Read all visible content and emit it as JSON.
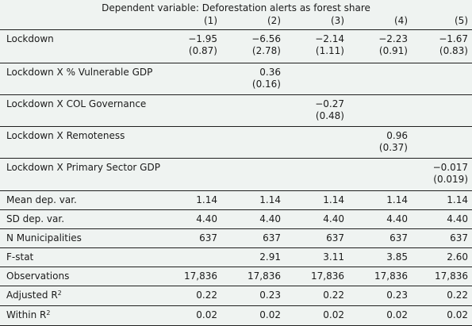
{
  "header": {
    "title": "Dependent variable: Deforestation alerts as forest share",
    "columns": [
      "(1)",
      "(2)",
      "(3)",
      "(4)",
      "(5)"
    ]
  },
  "rows": [
    {
      "label": "Lockdown",
      "est": [
        "−1.95",
        "−6.56",
        "−2.14",
        "−2.23",
        "−1.67"
      ],
      "se": [
        "(0.87)",
        "(2.78)",
        "(1.11)",
        "(0.91)",
        "(0.83)"
      ]
    },
    {
      "label": "Lockdown X % Vulnerable GDP",
      "est": [
        "",
        "0.36",
        "",
        "",
        ""
      ],
      "se": [
        "",
        "(0.16)",
        "",
        "",
        ""
      ]
    },
    {
      "label": "Lockdown X COL Governance",
      "est": [
        "",
        "",
        "−0.27",
        "",
        ""
      ],
      "se": [
        "",
        "",
        "(0.48)",
        "",
        ""
      ]
    },
    {
      "label": "Lockdown X Remoteness",
      "est": [
        "",
        "",
        "",
        "0.96",
        ""
      ],
      "se": [
        "",
        "",
        "",
        "(0.37)",
        ""
      ]
    },
    {
      "label": "Lockdown X Primary Sector GDP",
      "est": [
        "",
        "",
        "",
        "",
        "−0.017"
      ],
      "se": [
        "",
        "",
        "",
        "",
        "(0.019)"
      ]
    }
  ],
  "stats": [
    {
      "label": "Mean dep. var.",
      "values": [
        "1.14",
        "1.14",
        "1.14",
        "1.14",
        "1.14"
      ]
    },
    {
      "label": "SD dep. var.",
      "values": [
        "4.40",
        "4.40",
        "4.40",
        "4.40",
        "4.40"
      ]
    },
    {
      "label": "N Municipalities",
      "values": [
        "637",
        "637",
        "637",
        "637",
        "637"
      ]
    },
    {
      "label": "F-stat",
      "values": [
        "",
        "2.91",
        "3.11",
        "3.85",
        "2.60"
      ]
    },
    {
      "label": "Observations",
      "values": [
        "17,836",
        "17,836",
        "17,836",
        "17,836",
        "17,836"
      ]
    },
    {
      "label": "Adjusted R",
      "sup": "2",
      "values": [
        "0.22",
        "0.23",
        "0.22",
        "0.23",
        "0.22"
      ]
    },
    {
      "label": "Within R",
      "sup": "2",
      "values": [
        "0.02",
        "0.02",
        "0.02",
        "0.02",
        "0.02"
      ]
    }
  ]
}
